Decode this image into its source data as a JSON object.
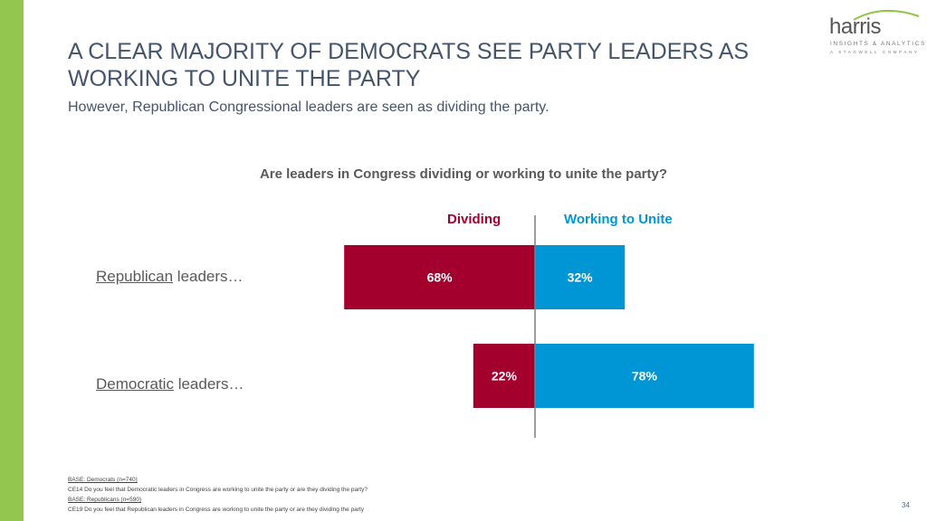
{
  "colors": {
    "accent_bar": "#92c64e",
    "dividing": "#a3002e",
    "unite": "#0096d6",
    "text": "#595959",
    "title": "#44546a"
  },
  "header": {
    "title": "A CLEAR MAJORITY OF DEMOCRATS SEE PARTY LEADERS AS WORKING TO UNITE THE PARTY",
    "subtitle": "However, Republican Congressional leaders are seen as dividing the party."
  },
  "logo": {
    "brand": "harris",
    "tagline": "INSIGHTS & ANALYTICS",
    "subtagline": "A STAGWELL COMPANY"
  },
  "chart_data": {
    "type": "bar",
    "orientation": "horizontal-diverging",
    "title": "Are leaders in Congress dividing or working to unite the party?",
    "categories": [
      {
        "prefix": "Republican",
        "suffix": " leaders…"
      },
      {
        "prefix": "Democratic",
        "suffix": " leaders…"
      }
    ],
    "series": [
      {
        "name": "Dividing",
        "values": [
          68,
          22
        ],
        "labels": [
          "68%",
          "22%"
        ]
      },
      {
        "name": "Working to Unite",
        "values": [
          32,
          78
        ],
        "labels": [
          "32%",
          "78%"
        ]
      }
    ]
  },
  "footnotes": {
    "base1": "BASE: Democrats (n=740)",
    "q1": "CE14 Do you feel that Democratic leaders in Congress are working to unite the party or are they dividing the party?",
    "base2": "BASE: Republicans (n=590)",
    "q2": "CE19 Do you feel that Republican leaders in Congress are working to unite the party or are they dividing the party"
  },
  "page_number": "34"
}
